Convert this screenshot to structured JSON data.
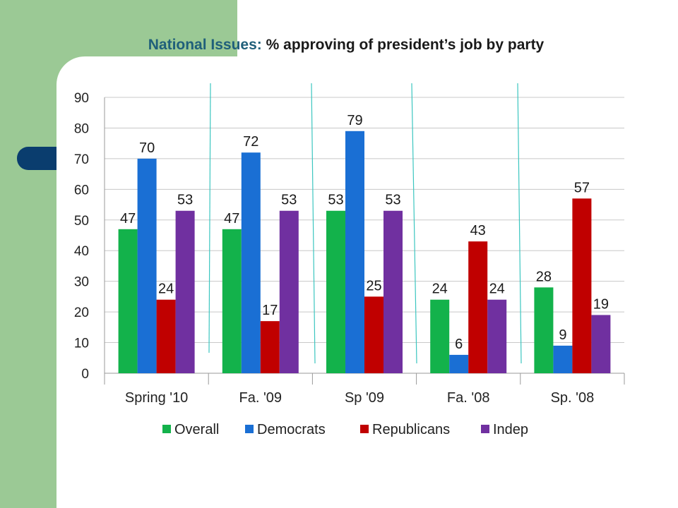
{
  "title": {
    "part1": "National Issues:",
    "part2": " % approving of president’s job by party"
  },
  "chart_data": {
    "type": "bar",
    "categories": [
      "Spring '10",
      "Fa. '09",
      "Sp '09",
      "Fa. '08",
      "Sp. '08"
    ],
    "series": [
      {
        "name": "Overall",
        "color": "#13b24b",
        "values": [
          47,
          47,
          53,
          24,
          28
        ]
      },
      {
        "name": "Democrats",
        "color": "#1a6fd4",
        "values": [
          70,
          72,
          79,
          6,
          9
        ]
      },
      {
        "name": "Republicans",
        "color": "#c00000",
        "values": [
          24,
          17,
          25,
          43,
          57
        ]
      },
      {
        "name": "Indep",
        "color": "#7030a0",
        "values": [
          53,
          53,
          53,
          24,
          19
        ]
      }
    ],
    "ylim": [
      0,
      90
    ],
    "yticks": [
      0,
      10,
      20,
      30,
      40,
      50,
      60,
      70,
      80,
      90
    ],
    "grid": true,
    "legend": "bottom",
    "data_labels": true
  }
}
